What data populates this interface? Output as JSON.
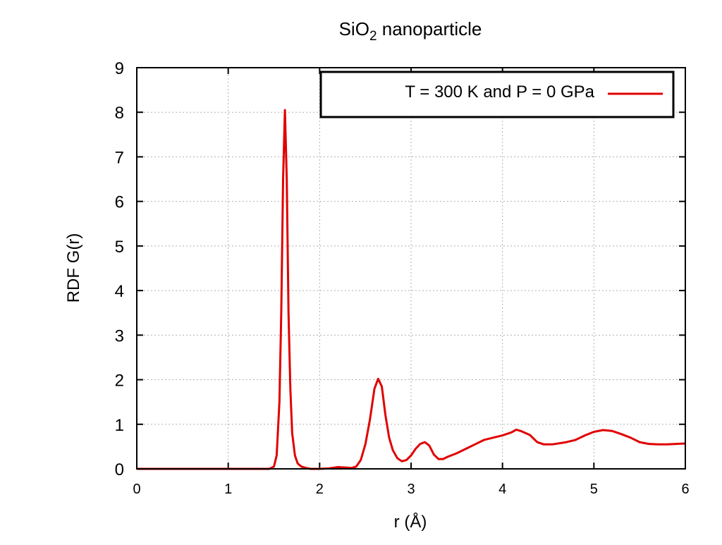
{
  "chart_data": {
    "type": "line",
    "title": "SiO",
    "title_subscript": "2",
    "title_suffix": " nanoparticle",
    "xlabel": "r (Å)",
    "ylabel": "RDF G(r)",
    "xlim": [
      0,
      6
    ],
    "ylim": [
      0,
      9
    ],
    "xticks": [
      0,
      1,
      2,
      3,
      4,
      5,
      6
    ],
    "yticks": [
      0,
      1,
      2,
      3,
      4,
      5,
      6,
      7,
      8,
      9
    ],
    "grid": true,
    "legend_position": "top-right",
    "series": [
      {
        "name": "T = 300 K and P = 0 GPa",
        "color": "#e00000",
        "points": [
          [
            0.0,
            0.0
          ],
          [
            1.45,
            0.0
          ],
          [
            1.5,
            0.05
          ],
          [
            1.53,
            0.3
          ],
          [
            1.56,
            1.5
          ],
          [
            1.58,
            3.5
          ],
          [
            1.6,
            6.5
          ],
          [
            1.62,
            8.05
          ],
          [
            1.64,
            6.5
          ],
          [
            1.66,
            3.5
          ],
          [
            1.68,
            1.8
          ],
          [
            1.7,
            0.8
          ],
          [
            1.73,
            0.3
          ],
          [
            1.76,
            0.12
          ],
          [
            1.8,
            0.05
          ],
          [
            1.85,
            0.02
          ],
          [
            1.9,
            0.0
          ],
          [
            2.0,
            0.0
          ],
          [
            2.1,
            0.01
          ],
          [
            2.2,
            0.04
          ],
          [
            2.28,
            0.03
          ],
          [
            2.35,
            0.02
          ],
          [
            2.4,
            0.05
          ],
          [
            2.45,
            0.2
          ],
          [
            2.5,
            0.55
          ],
          [
            2.55,
            1.1
          ],
          [
            2.6,
            1.8
          ],
          [
            2.64,
            2.02
          ],
          [
            2.68,
            1.85
          ],
          [
            2.72,
            1.2
          ],
          [
            2.76,
            0.7
          ],
          [
            2.8,
            0.42
          ],
          [
            2.85,
            0.24
          ],
          [
            2.9,
            0.17
          ],
          [
            2.95,
            0.2
          ],
          [
            3.0,
            0.3
          ],
          [
            3.05,
            0.45
          ],
          [
            3.1,
            0.56
          ],
          [
            3.15,
            0.6
          ],
          [
            3.2,
            0.52
          ],
          [
            3.25,
            0.32
          ],
          [
            3.3,
            0.22
          ],
          [
            3.35,
            0.22
          ],
          [
            3.4,
            0.27
          ],
          [
            3.5,
            0.35
          ],
          [
            3.6,
            0.45
          ],
          [
            3.7,
            0.55
          ],
          [
            3.8,
            0.65
          ],
          [
            3.9,
            0.7
          ],
          [
            4.0,
            0.75
          ],
          [
            4.1,
            0.82
          ],
          [
            4.15,
            0.88
          ],
          [
            4.2,
            0.85
          ],
          [
            4.3,
            0.76
          ],
          [
            4.38,
            0.6
          ],
          [
            4.45,
            0.55
          ],
          [
            4.55,
            0.55
          ],
          [
            4.7,
            0.6
          ],
          [
            4.8,
            0.65
          ],
          [
            4.9,
            0.75
          ],
          [
            5.0,
            0.83
          ],
          [
            5.1,
            0.87
          ],
          [
            5.2,
            0.85
          ],
          [
            5.3,
            0.78
          ],
          [
            5.4,
            0.7
          ],
          [
            5.5,
            0.6
          ],
          [
            5.6,
            0.56
          ],
          [
            5.7,
            0.55
          ],
          [
            5.8,
            0.55
          ],
          [
            5.9,
            0.56
          ],
          [
            6.0,
            0.57
          ]
        ]
      }
    ]
  }
}
